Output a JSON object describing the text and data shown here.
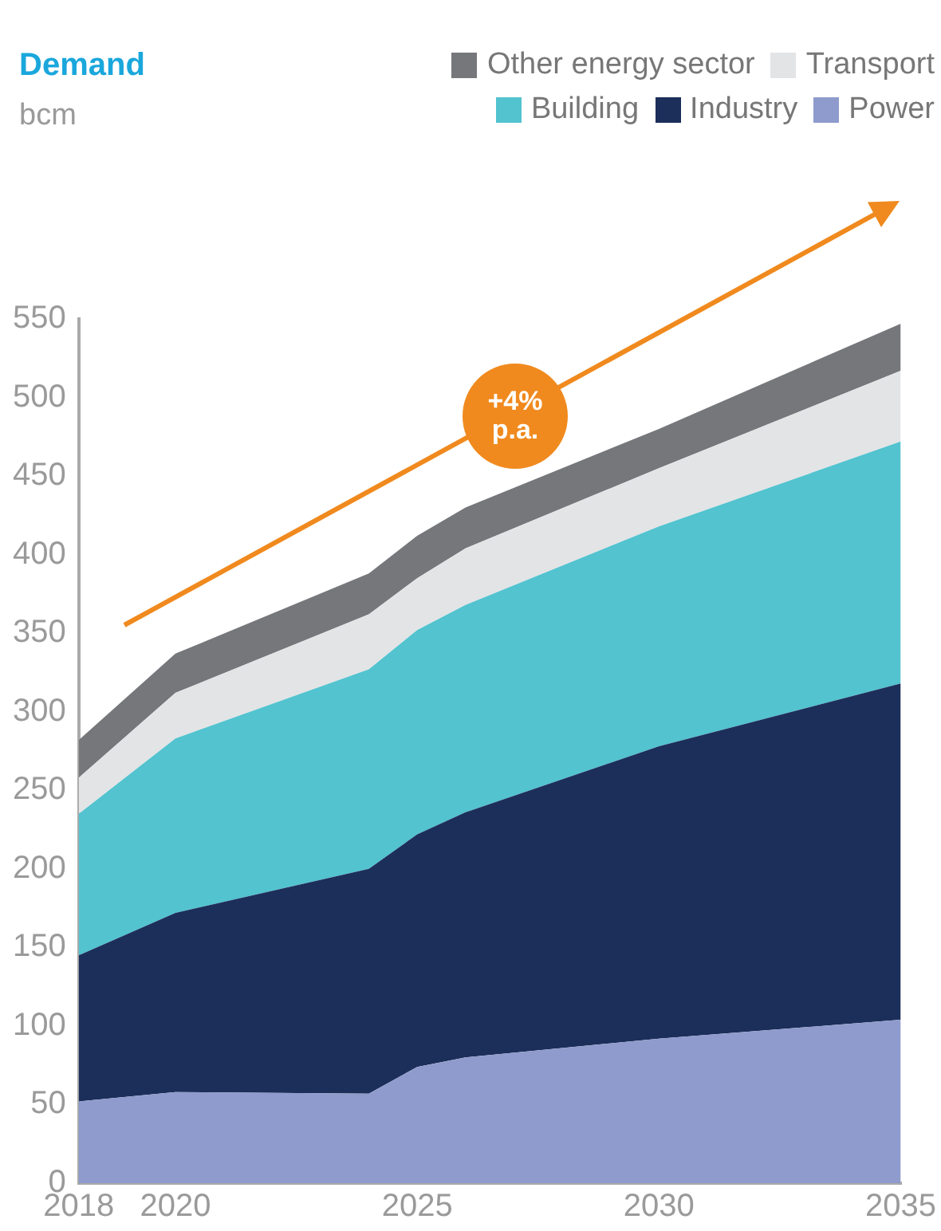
{
  "chart_data": {
    "type": "area",
    "title": "Demand",
    "subtitle": "bcm",
    "stacked": true,
    "legend": "top right",
    "grid": false,
    "x": [
      2018,
      2020,
      2024,
      2025,
      2026,
      2030,
      2035
    ],
    "xlim": [
      2018,
      2035
    ],
    "xticks": [
      2018,
      2020,
      2025,
      2030,
      2035
    ],
    "ylim": [
      0,
      550
    ],
    "yticks": [
      0,
      50,
      100,
      150,
      200,
      250,
      300,
      350,
      400,
      450,
      500,
      550
    ],
    "series": [
      {
        "name": "Power",
        "color": "#8f9bcc",
        "values": [
          52,
          58,
          57,
          74,
          80,
          92,
          104
        ]
      },
      {
        "name": "Industry",
        "color": "#1c2f5a",
        "values": [
          93,
          114,
          143,
          148,
          156,
          186,
          214
        ]
      },
      {
        "name": "Building",
        "color": "#52c3cf",
        "values": [
          90,
          111,
          127,
          130,
          132,
          140,
          154
        ]
      },
      {
        "name": "Transport",
        "color": "#e3e4e6",
        "values": [
          23,
          29,
          35,
          33,
          36,
          37,
          45
        ]
      },
      {
        "name": "Other energy sector",
        "color": "#76777b",
        "values": [
          24,
          25,
          26,
          27,
          26,
          25,
          30
        ]
      }
    ],
    "annotations": [
      "+4% p.a."
    ]
  }
}
